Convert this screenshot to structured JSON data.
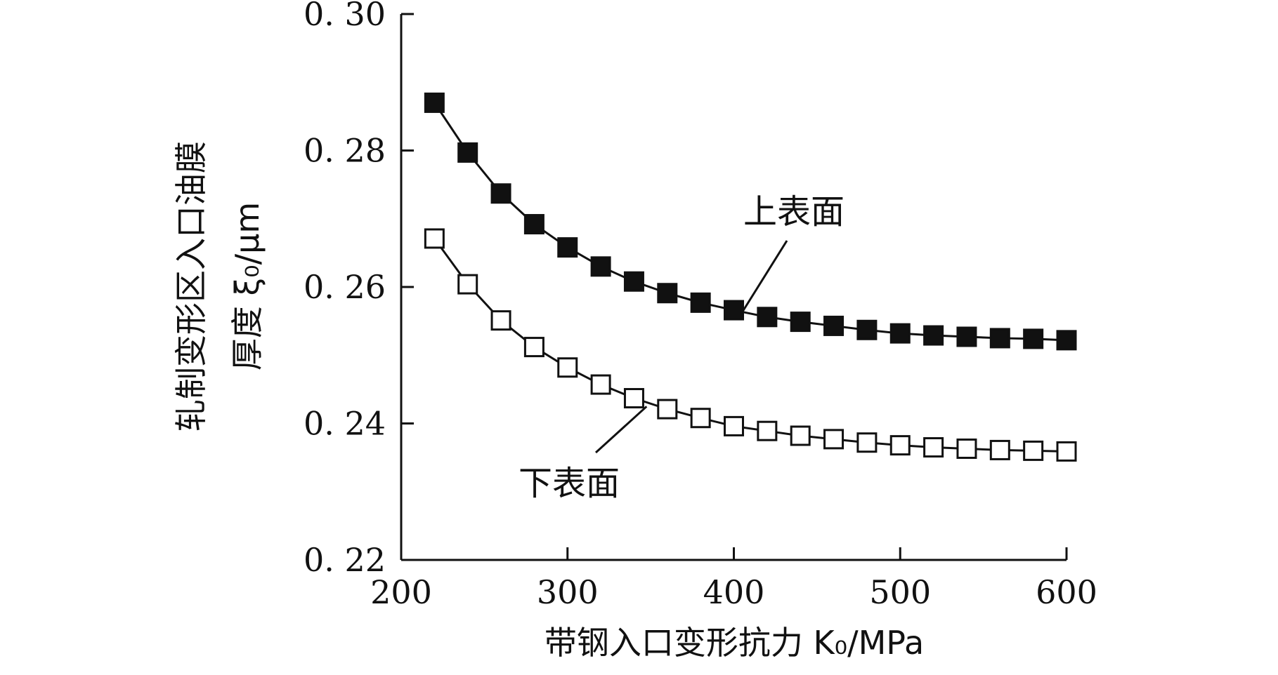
{
  "chart_data": {
    "type": "line",
    "x": [
      220,
      240,
      260,
      280,
      300,
      320,
      340,
      360,
      380,
      400,
      420,
      440,
      460,
      480,
      500,
      520,
      540,
      560,
      580,
      600
    ],
    "series": [
      {
        "name": "上表面",
        "marker": "filled-square",
        "values": [
          0.287,
          0.2797,
          0.2737,
          0.2692,
          0.2658,
          0.263,
          0.2608,
          0.2591,
          0.2577,
          0.2566,
          0.2556,
          0.2549,
          0.2543,
          0.2537,
          0.2532,
          0.2529,
          0.2527,
          0.2525,
          0.2524,
          0.2522
        ]
      },
      {
        "name": "下表面",
        "marker": "open-square",
        "values": [
          0.2671,
          0.2604,
          0.2551,
          0.2512,
          0.2482,
          0.2457,
          0.2437,
          0.2421,
          0.2408,
          0.2396,
          0.2389,
          0.2382,
          0.2377,
          0.2372,
          0.2368,
          0.2365,
          0.2363,
          0.2361,
          0.236,
          0.2359
        ]
      }
    ],
    "xlim": [
      200,
      600
    ],
    "ylim": [
      0.22,
      0.3
    ],
    "x_ticks": [
      200,
      300,
      400,
      500,
      600
    ],
    "y_ticks": [
      0.22,
      0.24,
      0.26,
      0.28,
      0.3
    ],
    "x_tick_labels": [
      "200",
      "300",
      "400",
      "500",
      "600"
    ],
    "y_tick_labels": [
      "0. 22",
      "0. 24",
      "0. 26",
      "0. 28",
      "0. 30"
    ],
    "xlabel": "带钢入口变形抗力 K₀/MPa",
    "ylabel": [
      "轧制变形区入口油膜",
      "厚度 ξ₀/μm"
    ],
    "annotations": [
      {
        "text": "上表面",
        "series": "上表面",
        "at_x": 405
      },
      {
        "text": "下表面",
        "series": "下表面",
        "at_x": 345
      }
    ],
    "grid": false,
    "legend": "none",
    "colors": {
      "line": "#111111",
      "background": "#ffffff"
    }
  }
}
